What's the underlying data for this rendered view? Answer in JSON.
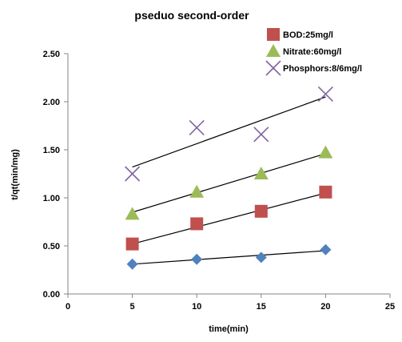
{
  "chart_data": {
    "type": "scatter",
    "title": "pseduo second-order",
    "xlabel": "time(min)",
    "ylabel": "t/qt(min/mg)",
    "xlim": [
      0,
      25
    ],
    "ylim": [
      0,
      2.5
    ],
    "x_ticks": [
      "0",
      "5",
      "10",
      "15",
      "20",
      "25"
    ],
    "y_ticks": [
      "0.00",
      "0.50",
      "1.00",
      "1.50",
      "2.00",
      "2.50"
    ],
    "grid": false,
    "legend_position": "top-right",
    "x": [
      5,
      10,
      15,
      20
    ],
    "series": [
      {
        "name": "BOD:25mg/l",
        "marker": "square",
        "color": "#C0504D",
        "values": [
          0.52,
          0.73,
          0.86,
          1.06
        ],
        "trend": [
          0.52,
          0.7,
          0.87,
          1.05
        ]
      },
      {
        "name": "Nitrate:60mg/l",
        "marker": "triangle",
        "color": "#9BBB59",
        "values": [
          0.83,
          1.06,
          1.25,
          1.47
        ],
        "trend": [
          0.85,
          1.05,
          1.26,
          1.46
        ]
      },
      {
        "name": "Phosphors:8/6mg/l",
        "marker": "x",
        "color": "#8064A2",
        "values": [
          1.25,
          1.73,
          1.66,
          2.08
        ],
        "trend": [
          1.32,
          1.56,
          1.8,
          2.05
        ]
      },
      {
        "name": "",
        "marker": "diamond",
        "color": "#4F81BD",
        "values": [
          0.31,
          0.36,
          0.38,
          0.46
        ],
        "trend": [
          0.31,
          0.35,
          0.4,
          0.45
        ]
      }
    ]
  }
}
